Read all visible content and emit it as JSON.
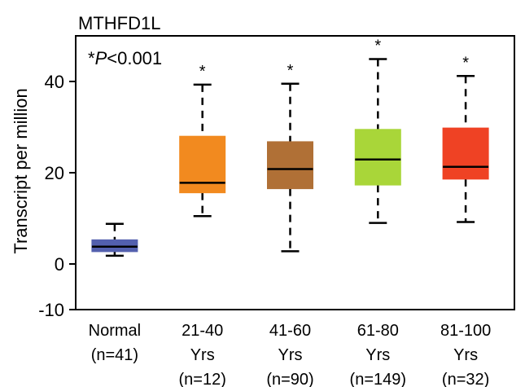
{
  "chart_data": {
    "type": "box",
    "title": "MTHFD1L",
    "ylabel": "Transcript per million",
    "xlabel": "",
    "ylim": [
      -10,
      50
    ],
    "yticks": [
      -10,
      0,
      20,
      40
    ],
    "annotation": {
      "prefix": "*",
      "p_italic": "P",
      "rest": "<0.001"
    },
    "grid": false,
    "categories": [
      {
        "lines": [
          "Normal",
          "(n=41)"
        ],
        "color": "#5360ae",
        "star": "",
        "whisker_low": 1.8,
        "q1": 2.7,
        "median": 3.8,
        "q3": 5.3,
        "whisker_high": 8.8
      },
      {
        "lines": [
          "21-40",
          "Yrs",
          "(n=12)"
        ],
        "color": "#f28a1f",
        "star": "*",
        "whisker_low": 10.5,
        "q1": 15.6,
        "median": 17.8,
        "q3": 28.0,
        "whisker_high": 39.3
      },
      {
        "lines": [
          "41-60",
          "Yrs",
          "(n=90)"
        ],
        "color": "#b07036",
        "star": "*",
        "whisker_low": 2.8,
        "q1": 16.5,
        "median": 20.8,
        "q3": 26.8,
        "whisker_high": 39.5
      },
      {
        "lines": [
          "61-80",
          "Yrs",
          "(n=149)"
        ],
        "color": "#a9d639",
        "star": "*",
        "whisker_low": 9.0,
        "q1": 17.3,
        "median": 22.9,
        "q3": 29.5,
        "whisker_high": 44.9
      },
      {
        "lines": [
          "81-100",
          "Yrs",
          "(n=32)"
        ],
        "color": "#ef4224",
        "star": "*",
        "whisker_low": 9.2,
        "q1": 18.6,
        "median": 21.3,
        "q3": 29.8,
        "whisker_high": 41.2
      }
    ]
  }
}
